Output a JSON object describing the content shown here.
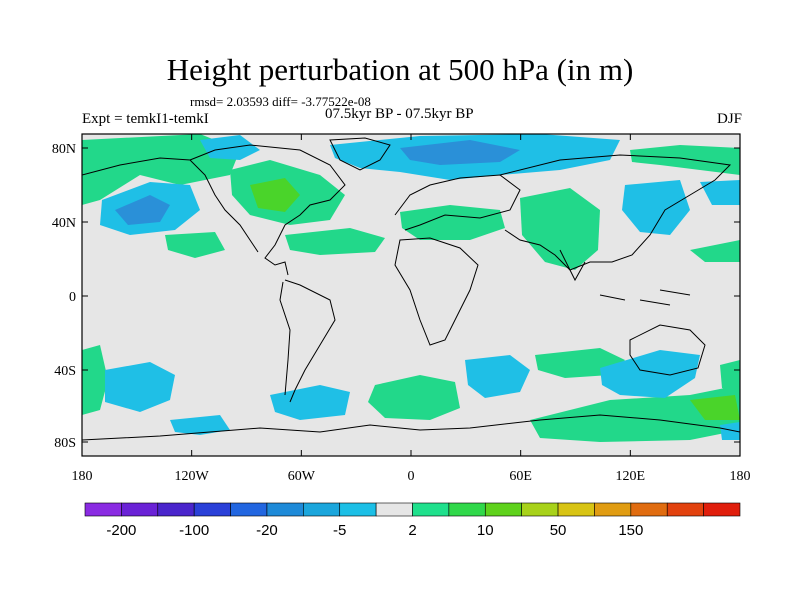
{
  "title": "Height perturbation at 500 hPa (in m)",
  "stats": "rmsd= 2.03593 diff= -3.77522e-08",
  "experiment": "Expt = temkI1-temkI",
  "period": "07.5kyr BP - 07.5kyr BP",
  "season": "DJF",
  "projection": "cylindrical equidistant",
  "extent": {
    "lon": [
      -180,
      180
    ],
    "lat": [
      -90,
      90
    ]
  },
  "lat_ticks": [
    "80N",
    "40N",
    "0",
    "40S",
    "80S"
  ],
  "lon_ticks": [
    "180",
    "120W",
    "60W",
    "0",
    "60E",
    "120E",
    "180"
  ],
  "colorbar": {
    "colors": [
      "#8a2be2",
      "#6a22d6",
      "#4a25cc",
      "#2a40d8",
      "#2266e0",
      "#1e8ad8",
      "#1ba6dc",
      "#1cbfe6",
      "#e6e6e6",
      "#1fe08c",
      "#30d84a",
      "#5fd21c",
      "#a8d21a",
      "#d8c414",
      "#e09c12",
      "#e06c10",
      "#e2420e",
      "#e01e0c"
    ],
    "labels": [
      "-200",
      "-100",
      "-20",
      "-5",
      "2",
      "10",
      "50",
      "150"
    ]
  },
  "fill_colors": {
    "background": "#e6e6e6",
    "negative": "#1fbfe6",
    "negative_strong": "#2a90d8",
    "positive": "#22d88a",
    "positive_strong": "#4ad42a"
  }
}
